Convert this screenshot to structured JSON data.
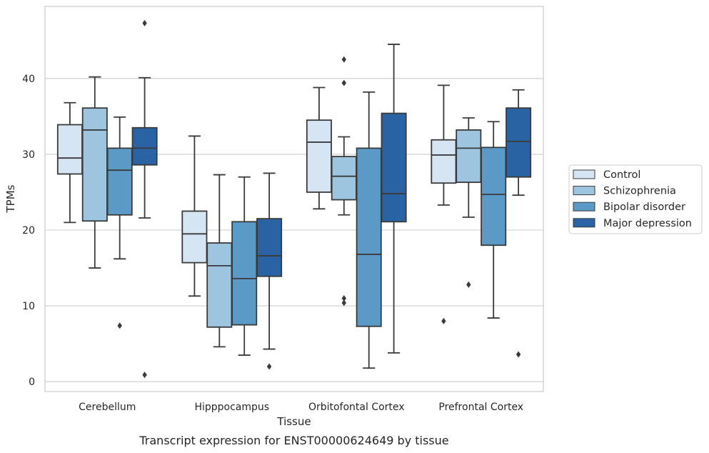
{
  "caption": "Transcript expression for ENST00000624649 by tissue",
  "chart_data": {
    "type": "boxplot",
    "title": "",
    "xlabel": "Tissue",
    "ylabel": "TPMs",
    "ylim": [
      -1.3,
      49.5
    ],
    "yticks": [
      0,
      10,
      20,
      30,
      40
    ],
    "grid": true,
    "legend_position": "right-outside",
    "categories": [
      "Cerebellum",
      "Hipppocampus",
      "Orbitofontal Cortex",
      "Prefrontal Cortex"
    ],
    "series": [
      {
        "name": "Control",
        "color": "#d6e5f3",
        "boxes": [
          {
            "whislo": 21.0,
            "q1": 27.4,
            "med": 29.5,
            "q3": 33.9,
            "whishi": 36.8,
            "fliers": []
          },
          {
            "whislo": 11.3,
            "q1": 15.7,
            "med": 19.5,
            "q3": 22.5,
            "whishi": 32.4,
            "fliers": []
          },
          {
            "whislo": 22.8,
            "q1": 25.0,
            "med": 31.6,
            "q3": 34.5,
            "whishi": 38.8,
            "fliers": []
          },
          {
            "whislo": 23.3,
            "q1": 26.2,
            "med": 29.9,
            "q3": 31.9,
            "whishi": 39.1,
            "fliers": [
              8.0
            ]
          }
        ]
      },
      {
        "name": "Schizophrenia",
        "color": "#9dc5e0",
        "boxes": [
          {
            "whislo": 15.0,
            "q1": 21.2,
            "med": 33.2,
            "q3": 36.1,
            "whishi": 40.2,
            "fliers": []
          },
          {
            "whislo": 4.6,
            "q1": 7.2,
            "med": 15.3,
            "q3": 18.3,
            "whishi": 27.3,
            "fliers": []
          },
          {
            "whislo": 22.0,
            "q1": 24.0,
            "med": 27.1,
            "q3": 29.7,
            "whishi": 32.3,
            "fliers": [
              42.5,
              39.4,
              11.0,
              10.4
            ]
          },
          {
            "whislo": 21.7,
            "q1": 26.3,
            "med": 30.8,
            "q3": 33.2,
            "whishi": 34.8,
            "fliers": [
              12.8
            ]
          }
        ]
      },
      {
        "name": "Bipolar disorder",
        "color": "#5b9ac7",
        "boxes": [
          {
            "whislo": 16.2,
            "q1": 22.0,
            "med": 27.9,
            "q3": 30.8,
            "whishi": 34.9,
            "fliers": [
              7.4
            ]
          },
          {
            "whislo": 3.5,
            "q1": 7.5,
            "med": 13.6,
            "q3": 21.1,
            "whishi": 27.0,
            "fliers": []
          },
          {
            "whislo": 1.8,
            "q1": 7.3,
            "med": 16.8,
            "q3": 30.8,
            "whishi": 38.2,
            "fliers": []
          },
          {
            "whislo": 8.4,
            "q1": 18.0,
            "med": 24.7,
            "q3": 30.9,
            "whishi": 34.3,
            "fliers": []
          }
        ]
      },
      {
        "name": "Major depression",
        "color": "#2a63a3",
        "boxes": [
          {
            "whislo": 21.6,
            "q1": 28.6,
            "med": 30.8,
            "q3": 33.5,
            "whishi": 40.1,
            "fliers": [
              47.3,
              0.9
            ]
          },
          {
            "whislo": 4.3,
            "q1": 13.9,
            "med": 16.6,
            "q3": 21.5,
            "whishi": 27.5,
            "fliers": [
              2.0
            ]
          },
          {
            "whislo": 3.8,
            "q1": 21.1,
            "med": 24.8,
            "q3": 35.4,
            "whishi": 44.5,
            "fliers": []
          },
          {
            "whislo": 24.6,
            "q1": 27.0,
            "med": 31.7,
            "q3": 36.1,
            "whishi": 38.5,
            "fliers": [
              3.6
            ]
          }
        ]
      }
    ]
  }
}
